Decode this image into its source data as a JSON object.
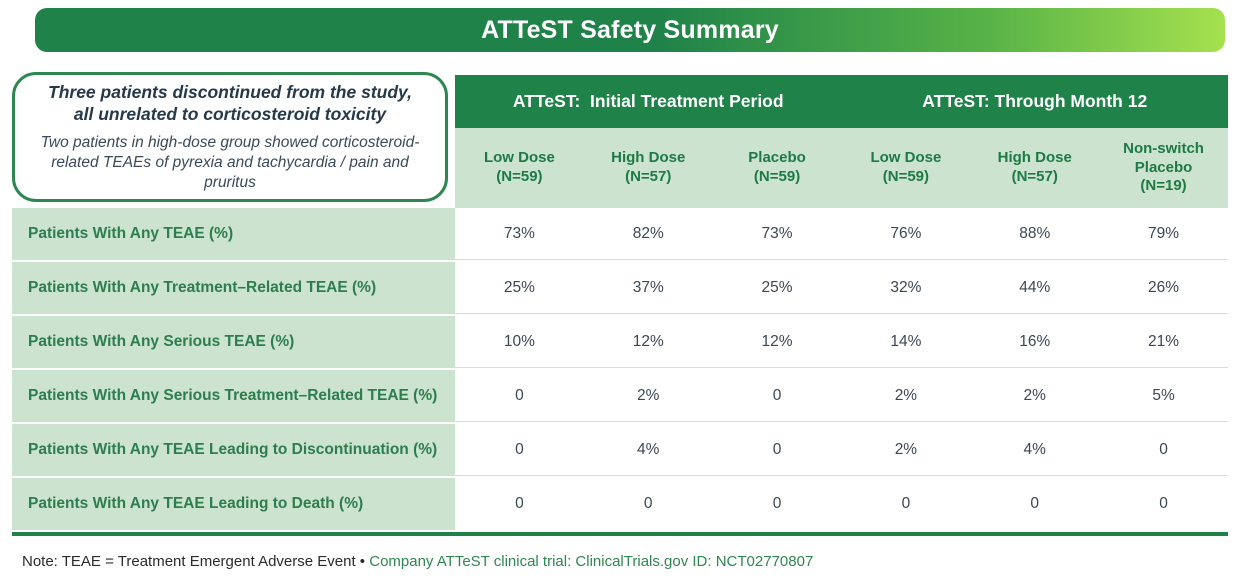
{
  "banner": {
    "title": "ATTeST Safety Summary"
  },
  "callout": {
    "headline_line1": "Three patients discontinued from the study,",
    "headline_line2": "all unrelated to corticosteroid toxicity",
    "subtext": "Two patients in high-dose group showed corticosteroid-related TEAEs of pyrexia and tachycardia / pain and pruritus"
  },
  "table": {
    "group_headers": [
      "ATTeST:  Initial Treatment Period",
      "ATTeST: Through Month 12"
    ],
    "columns": [
      {
        "label": "Low Dose",
        "n": "(N=59)"
      },
      {
        "label": "High Dose",
        "n": "(N=57)"
      },
      {
        "label": "Placebo",
        "n": "(N=59)"
      },
      {
        "label": "Low Dose",
        "n": "(N=59)"
      },
      {
        "label": "High Dose",
        "n": "(N=57)"
      },
      {
        "label": "Non-switch Placebo",
        "n": "(N=19)"
      }
    ],
    "rows": [
      {
        "label": "Patients With Any TEAE (%)",
        "values": [
          "73%",
          "82%",
          "73%",
          "76%",
          "88%",
          "79%"
        ]
      },
      {
        "label": "Patients With Any Treatment–Related TEAE (%)",
        "values": [
          "25%",
          "37%",
          "25%",
          "32%",
          "44%",
          "26%"
        ]
      },
      {
        "label": "Patients With Any Serious TEAE (%)",
        "values": [
          "10%",
          "12%",
          "12%",
          "14%",
          "16%",
          "21%"
        ]
      },
      {
        "label": "Patients With Any Serious Treatment–Related TEAE (%)",
        "values": [
          "0",
          "2%",
          "0",
          "2%",
          "2%",
          "5%"
        ]
      },
      {
        "label": "Patients With Any TEAE Leading to Discontinuation (%)",
        "values": [
          "0",
          "4%",
          "0",
          "2%",
          "4%",
          "0"
        ]
      },
      {
        "label": "Patients With Any TEAE Leading to Death (%)",
        "values": [
          "0",
          "0",
          "0",
          "0",
          "0",
          "0"
        ]
      }
    ]
  },
  "footnote": {
    "plain": "Note: TEAE = Treatment Emergent Adverse Event • ",
    "green": "Company ATTeST clinical trial: ClinicalTrials.gov ID: NCT02770807"
  },
  "colors": {
    "dark_green": "#1E8249",
    "lime_green": "#A6E14E",
    "light_green_bg": "#CBE3CF",
    "callout_border_green": "#2E8750",
    "header_text_green": "#1E7A45",
    "row_label_green": "#2E7D4E",
    "data_text": "#3C4654",
    "footnote_green": "#2E8750"
  },
  "chart_data": {
    "type": "table",
    "title": "ATTeST Safety Summary",
    "column_groups": [
      {
        "label": "ATTeST:  Initial Treatment Period",
        "span": 3
      },
      {
        "label": "ATTeST: Through Month 12",
        "span": 3
      }
    ],
    "columns": [
      "Low Dose (N=59)",
      "High Dose (N=57)",
      "Placebo (N=59)",
      "Low Dose (N=59)",
      "High Dose (N=57)",
      "Non-switch Placebo (N=19)"
    ],
    "row_labels": [
      "Patients With Any TEAE (%)",
      "Patients With Any Treatment–Related TEAE (%)",
      "Patients With Any Serious TEAE (%)",
      "Patients With Any Serious Treatment–Related TEAE (%)",
      "Patients With Any TEAE Leading to Discontinuation (%)",
      "Patients With Any TEAE Leading to Death (%)"
    ],
    "values": [
      [
        "73%",
        "82%",
        "73%",
        "76%",
        "88%",
        "79%"
      ],
      [
        "25%",
        "37%",
        "25%",
        "32%",
        "44%",
        "26%"
      ],
      [
        "10%",
        "12%",
        "12%",
        "14%",
        "16%",
        "21%"
      ],
      [
        "0",
        "2%",
        "0",
        "2%",
        "2%",
        "5%"
      ],
      [
        "0",
        "4%",
        "0",
        "2%",
        "4%",
        "0"
      ],
      [
        "0",
        "0",
        "0",
        "0",
        "0",
        "0"
      ]
    ],
    "annotations": [
      "Three patients discontinued from the study, all unrelated to corticosteroid toxicity",
      "Two patients in high-dose group showed corticosteroid-related TEAEs of pyrexia and tachycardia / pain and pruritus"
    ],
    "footnote": "Note: TEAE = Treatment Emergent Adverse Event • Company ATTeST clinical trial: ClinicalTrials.gov ID: NCT02770807"
  }
}
